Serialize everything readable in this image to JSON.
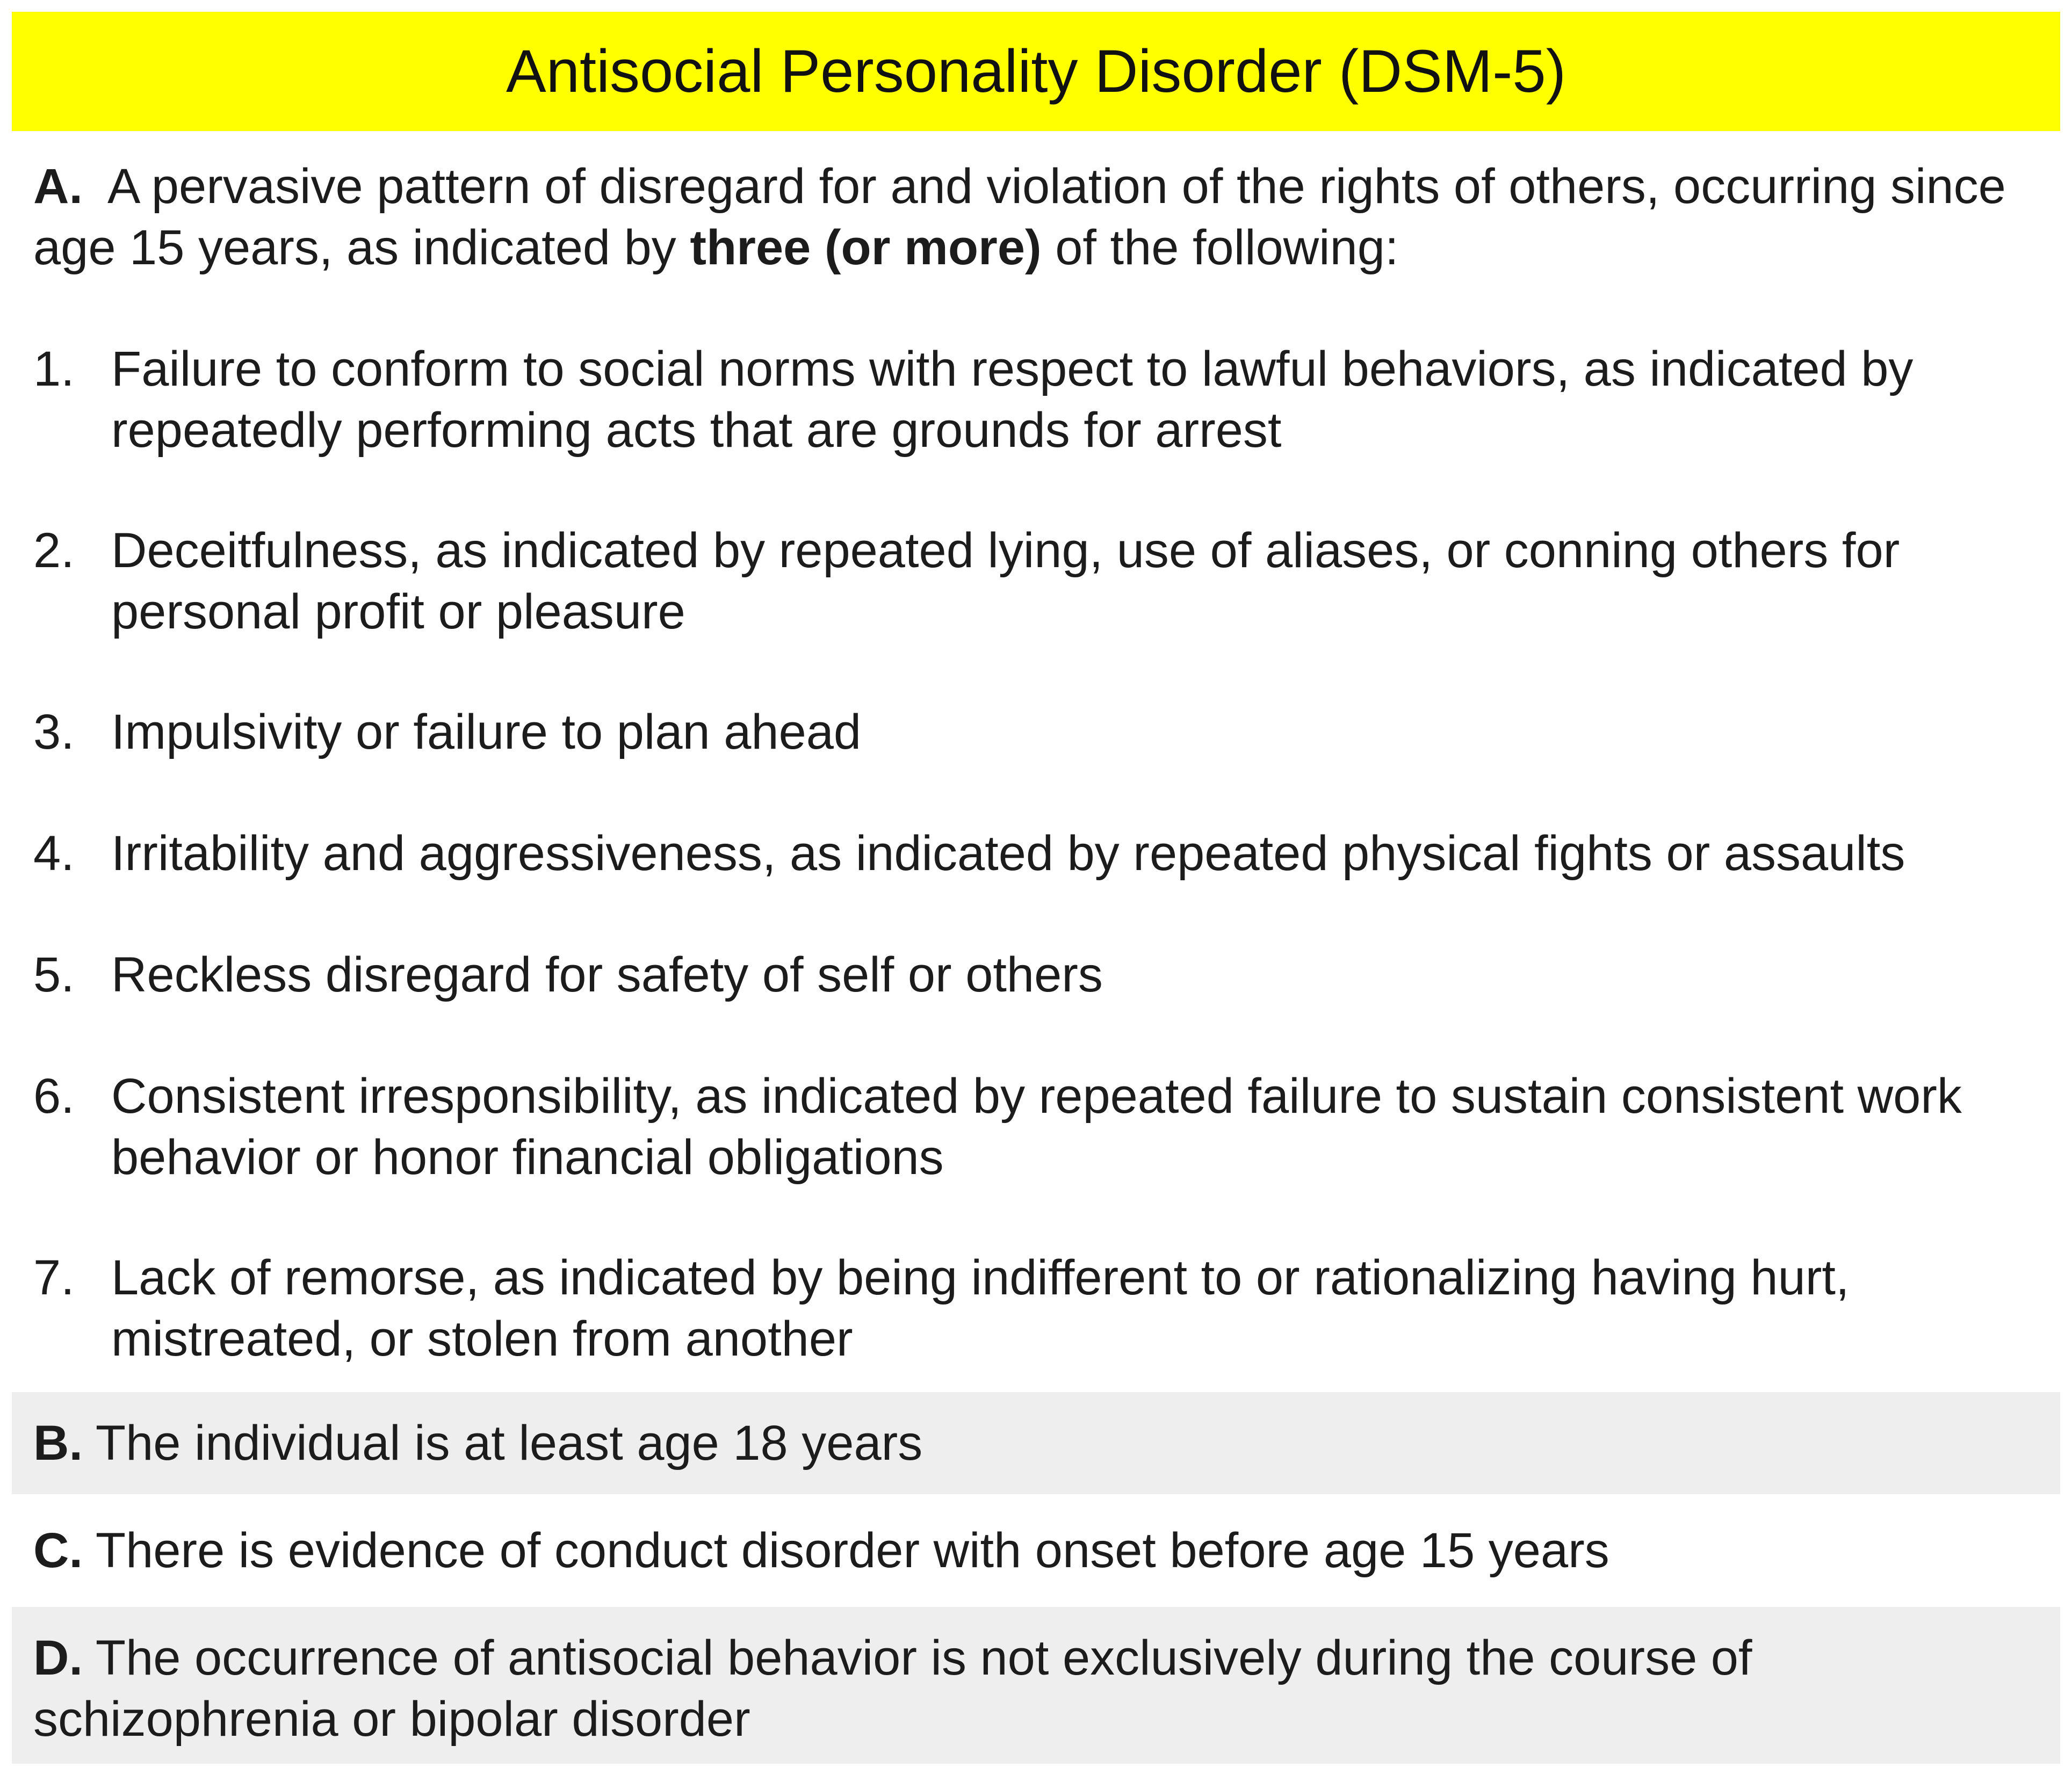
{
  "title": "Antisocial Personality Disorder (DSM-5)",
  "colors": {
    "title_background": "#ffff00",
    "shaded_row_background": "#eeeeee"
  },
  "criterion_a": {
    "letter": "A.",
    "text_before": "A pervasive pattern of disregard for and violation of the rights of others, occurring since age 15 years, as indicated by",
    "emphasis": "three (or more)",
    "text_after": "of the following:"
  },
  "items": [
    {
      "number": "1.",
      "text": "Failure to conform to social norms with respect to lawful behaviors, as indicated by repeatedly performing acts that are grounds for arrest"
    },
    {
      "number": "2.",
      "text": "Deceitfulness, as indicated by repeated lying, use of aliases, or conning others for personal profit or pleasure"
    },
    {
      "number": "3.",
      "text": "Impulsivity or failure to plan ahead"
    },
    {
      "number": "4.",
      "text": "Irritability and aggressiveness, as indicated by repeated physical fights or assaults"
    },
    {
      "number": "5.",
      "text": "Reckless disregard for safety of self or others"
    },
    {
      "number": "6.",
      "text": "Consistent irresponsibility, as indicated by repeated failure to sustain consistent work behavior or honor financial obligations"
    },
    {
      "number": "7.",
      "text": "Lack of remorse, as indicated by being indifferent to or rationalizing having hurt, mistreated, or stolen from another"
    }
  ],
  "criterion_b": {
    "letter": "B.",
    "text": "The individual is at least age 18 years"
  },
  "criterion_c": {
    "letter": "C.",
    "text": "There is evidence of conduct disorder with onset before age 15 years"
  },
  "criterion_d": {
    "letter": "D.",
    "text": "The occurrence of antisocial behavior is not exclusively during the course of schizophrenia or bipolar disorder"
  }
}
